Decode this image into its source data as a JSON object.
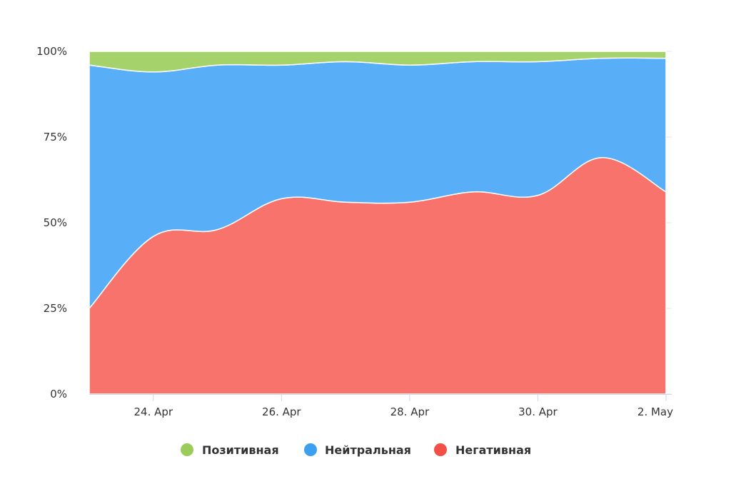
{
  "chart_data": {
    "type": "area",
    "stacking": "percent",
    "title": "",
    "xlabel": "",
    "ylabel": "",
    "x": [
      "23. Apr",
      "24. Apr",
      "25. Apr",
      "26. Apr",
      "27. Apr",
      "28. Apr",
      "29. Apr",
      "30. Apr",
      "1. May",
      "2. May"
    ],
    "x_tick_labels": [
      "24. Apr",
      "26. Apr",
      "28. Apr",
      "30. Apr",
      "2. May"
    ],
    "y_tick_labels": [
      "0%",
      "25%",
      "50%",
      "75%",
      "100%"
    ],
    "ylim": [
      0,
      100
    ],
    "grid": true,
    "legend_position": "bottom",
    "series": [
      {
        "name": "Негативная",
        "color": "#f7736b",
        "values": [
          25,
          46,
          48,
          57,
          56,
          56,
          59,
          58,
          69,
          59
        ]
      },
      {
        "name": "Нейтральная",
        "color": "#58aef7",
        "values": [
          71,
          48,
          48,
          39,
          41,
          40,
          38,
          39,
          29,
          39
        ]
      },
      {
        "name": "Позитивная",
        "color": "#a5d26b",
        "values": [
          4,
          6,
          4,
          4,
          3,
          4,
          3,
          3,
          2,
          2
        ]
      }
    ],
    "legend_order": [
      "Позитивная",
      "Нейтральная",
      "Негативная"
    ],
    "legend_colors": {
      "Позитивная": "#9bcc5a",
      "Нейтральная": "#3d9ff0",
      "Негативная": "#f25046"
    }
  }
}
